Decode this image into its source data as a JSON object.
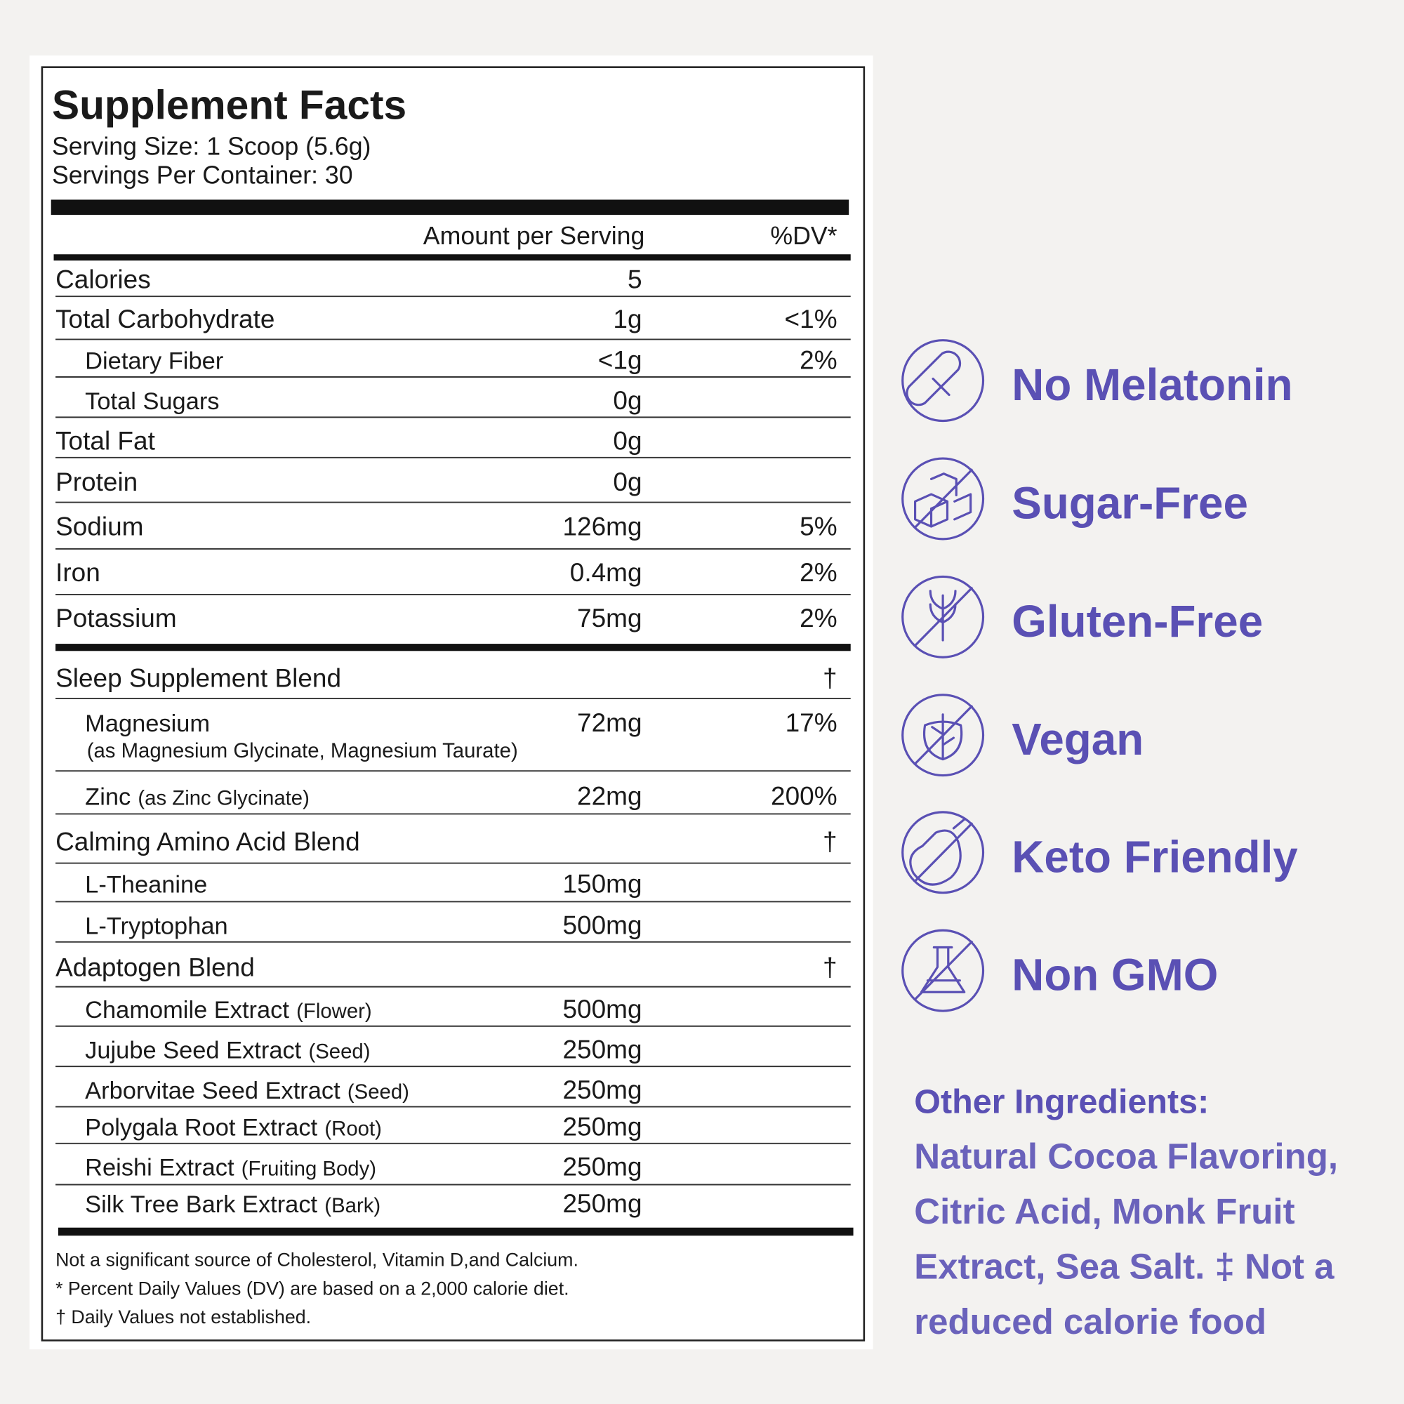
{
  "label": {
    "title": "Supplement Facts",
    "serving_size": "Serving Size: 1 Scoop (5.6g)",
    "servings_per_container": "Servings Per Container: 30",
    "header": {
      "amount": "Amount per Serving",
      "dv": "%DV*"
    },
    "nutrients": [
      {
        "name": "Calories",
        "amount": "5"
      },
      {
        "name": "Total Carbohydrate",
        "amount": "1g",
        "dv": "<1%",
        "children": [
          {
            "name": "Dietary Fiber",
            "amount": "<1g",
            "dv": "2%"
          },
          {
            "name": "Total Sugars",
            "amount": "0g"
          }
        ]
      },
      {
        "name": "Total Fat",
        "amount": "0g"
      },
      {
        "name": "Protein",
        "amount": "0g"
      },
      {
        "name": "Sodium",
        "amount": "126mg",
        "dv": "5%"
      },
      {
        "name": "Iron",
        "amount": "0.4mg",
        "dv": "2%"
      },
      {
        "name": "Potassium",
        "amount": "75mg",
        "dv": "2%"
      }
    ],
    "blends": [
      {
        "name": "Sleep Supplement Blend",
        "dv": "†",
        "items": [
          {
            "name": "Magnesium",
            "detail": "(as Magnesium Glycinate, Magnesium Taurate)",
            "amount": "72mg",
            "dv": "17%"
          },
          {
            "name": "Zinc",
            "note": "(as Zinc Glycinate)",
            "amount": "22mg",
            "dv": "200%"
          }
        ]
      },
      {
        "name": "Calming Amino Acid Blend",
        "dv": "†",
        "items": [
          {
            "name": "L-Theanine",
            "amount": "150mg"
          },
          {
            "name": "L-Tryptophan",
            "amount": "500mg"
          }
        ]
      },
      {
        "name": "Adaptogen Blend",
        "dv": "†",
        "items": [
          {
            "name": "Chamomile Extract",
            "note": "(Flower)",
            "amount": "500mg"
          },
          {
            "name": "Jujube Seed Extract",
            "note": "(Seed)",
            "amount": "250mg"
          },
          {
            "name": "Arborvitae Seed Extract",
            "note": "(Seed)",
            "amount": "250mg"
          },
          {
            "name": "Polygala Root Extract",
            "note": "(Root)",
            "amount": "250mg"
          },
          {
            "name": "Reishi Extract",
            "note": "(Fruiting Body)",
            "amount": "250mg"
          },
          {
            "name": "Silk Tree Bark Extract",
            "note": "(Bark)",
            "amount": "250mg"
          }
        ]
      }
    ],
    "footnotes": [
      "Not a significant source of Cholesterol, Vitamin D,and Calcium.",
      "* Percent Daily Values (DV) are based on a 2,000 calorie diet.",
      "† Daily Values not established."
    ]
  },
  "badges": [
    "No Melatonin",
    "Sugar-Free",
    "Gluten-Free",
    "Vegan",
    "Keto Friendly",
    "Non GMO"
  ],
  "other_ingredients": {
    "heading": "Other Ingredients:",
    "lines": [
      "Natural Cocoa Flavoring,",
      "Citric Acid, Monk Fruit",
      "Extract, Sea Salt. ‡ Not a",
      "reduced calorie food"
    ]
  }
}
